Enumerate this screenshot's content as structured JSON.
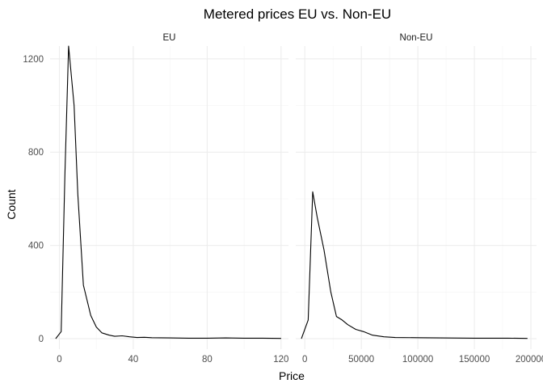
{
  "chart_data": {
    "type": "line",
    "title": "Metered prices EU vs. Non-EU",
    "xlabel": "Price",
    "ylabel": "Count",
    "ylim": [
      0,
      1300
    ],
    "y_ticks": [
      0,
      400,
      800,
      1200
    ],
    "grid": true,
    "legend": "none",
    "panels": [
      {
        "name": "EU",
        "xlim": [
          -5,
          124
        ],
        "x_ticks": [
          0,
          40,
          80,
          120
        ],
        "x_tick_labels": [
          "0",
          "40",
          "80",
          "120"
        ],
        "x": [
          -2,
          1,
          3,
          5,
          8,
          10,
          13,
          17,
          20,
          23,
          27,
          30,
          34,
          38,
          42,
          46,
          50,
          60,
          70,
          80,
          90,
          100,
          110,
          120
        ],
        "y": [
          0,
          30,
          700,
          1255,
          1000,
          620,
          230,
          100,
          50,
          25,
          15,
          10,
          12,
          8,
          5,
          6,
          4,
          3,
          2,
          2,
          3,
          2,
          2,
          1
        ]
      },
      {
        "name": "Non-EU",
        "xlim": [
          -8000,
          205000
        ],
        "x_ticks": [
          0,
          50000,
          100000,
          150000,
          200000
        ],
        "x_tick_labels": [
          "0",
          "50000",
          "100000",
          "150000",
          "200000"
        ],
        "x": [
          -3000,
          3000,
          7000,
          11000,
          17000,
          23000,
          28000,
          33000,
          38000,
          45000,
          52000,
          60000,
          70000,
          80000,
          100000,
          120000,
          150000,
          180000,
          197000
        ],
        "y": [
          0,
          80,
          630,
          520,
          380,
          200,
          95,
          80,
          60,
          40,
          30,
          15,
          8,
          5,
          4,
          3,
          2,
          2,
          1
        ]
      }
    ]
  }
}
